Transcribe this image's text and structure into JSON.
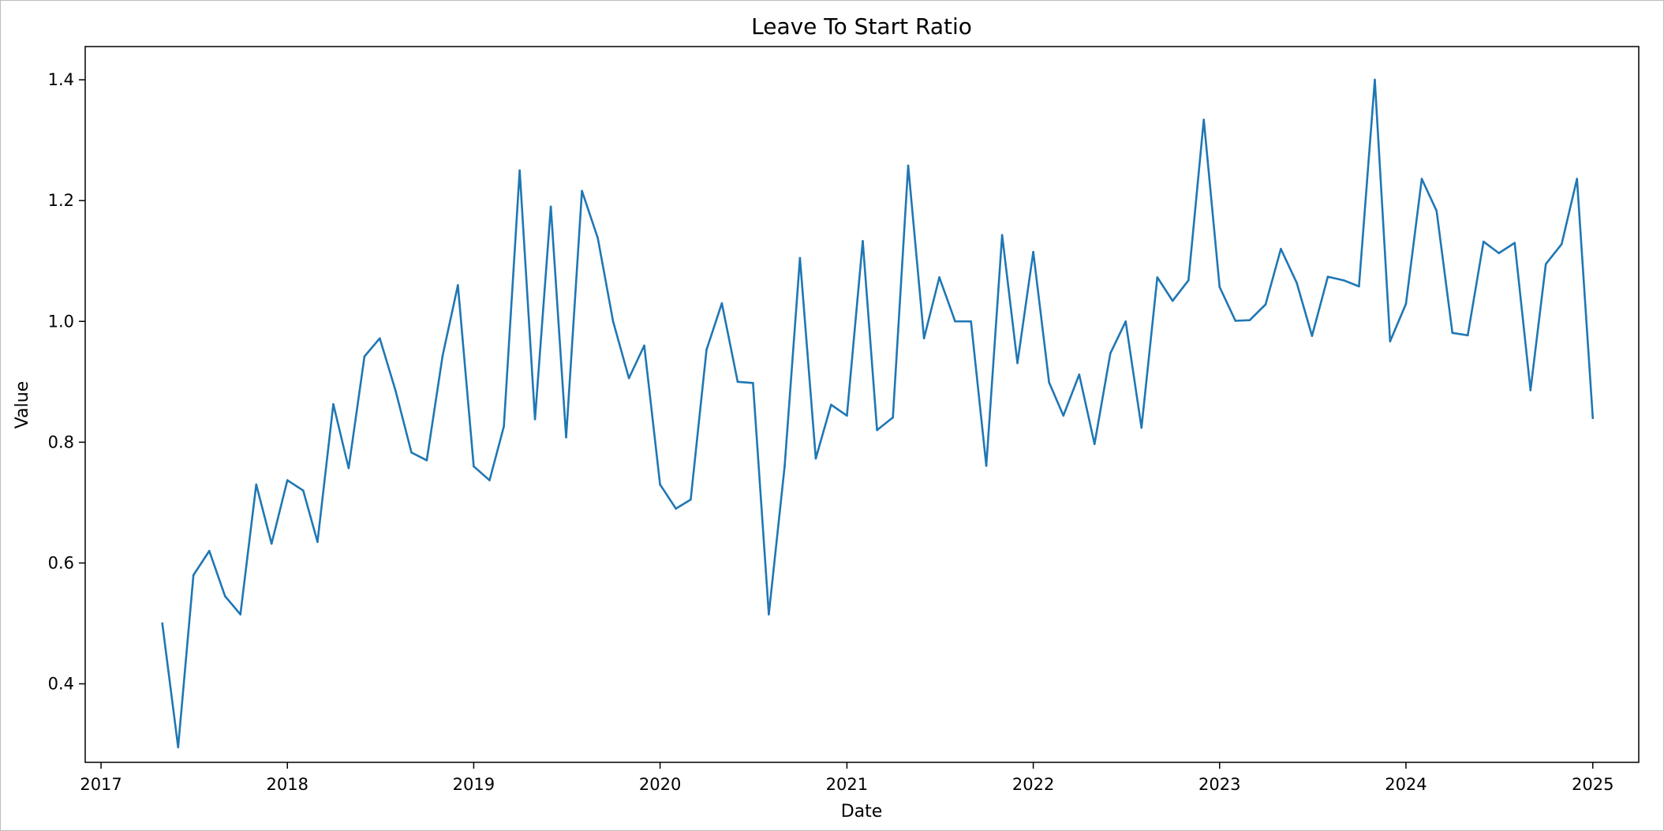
{
  "chart_data": {
    "type": "line",
    "title": "Leave To Start Ratio",
    "xlabel": "Date",
    "ylabel": "Value",
    "x_ticks": [
      "2017",
      "2018",
      "2019",
      "2020",
      "2021",
      "2022",
      "2023",
      "2024",
      "2025"
    ],
    "y_ticks": [
      "0.4",
      "0.6",
      "0.8",
      "1.0",
      "1.2",
      "1.4"
    ],
    "x_range": [
      "2016-12-01",
      "2025-04-01"
    ],
    "ylim": [
      0.27,
      1.455
    ],
    "grid": false,
    "legend": "none",
    "series": [
      {
        "color": "#1f77b4",
        "x": [
          "2017-05",
          "2017-06",
          "2017-07",
          "2017-08",
          "2017-09",
          "2017-10",
          "2017-11",
          "2017-12",
          "2018-01",
          "2018-02",
          "2018-03",
          "2018-04",
          "2018-05",
          "2018-06",
          "2018-07",
          "2018-08",
          "2018-09",
          "2018-10",
          "2018-11",
          "2018-12",
          "2019-01",
          "2019-02",
          "2019-03",
          "2019-04",
          "2019-05",
          "2019-06",
          "2019-07",
          "2019-08",
          "2019-09",
          "2019-10",
          "2019-11",
          "2019-12",
          "2020-01",
          "2020-02",
          "2020-03",
          "2020-04",
          "2020-05",
          "2020-06",
          "2020-07",
          "2020-08",
          "2020-09",
          "2020-10",
          "2020-11",
          "2020-12",
          "2021-01",
          "2021-02",
          "2021-03",
          "2021-04",
          "2021-05",
          "2021-06",
          "2021-07",
          "2021-08",
          "2021-09",
          "2021-10",
          "2021-11",
          "2021-12",
          "2022-01",
          "2022-02",
          "2022-03",
          "2022-04",
          "2022-05",
          "2022-06",
          "2022-07",
          "2022-08",
          "2022-09",
          "2022-10",
          "2022-11",
          "2022-12",
          "2023-01",
          "2023-02",
          "2023-03",
          "2023-04",
          "2023-05",
          "2023-06",
          "2023-07",
          "2023-08",
          "2023-09",
          "2023-10",
          "2023-11",
          "2023-12",
          "2024-01",
          "2024-02",
          "2024-03",
          "2024-04",
          "2024-05",
          "2024-06",
          "2024-07",
          "2024-08",
          "2024-09",
          "2024-10",
          "2024-11",
          "2024-12",
          "2025-01"
        ],
        "values": [
          0.5,
          0.295,
          0.58,
          0.62,
          0.545,
          0.515,
          0.73,
          0.632,
          0.737,
          0.72,
          0.635,
          0.863,
          0.757,
          0.942,
          0.972,
          0.885,
          0.783,
          0.77,
          0.943,
          1.06,
          0.76,
          0.737,
          0.826,
          1.25,
          0.838,
          1.19,
          0.808,
          1.216,
          1.138,
          1.0,
          0.906,
          0.96,
          0.73,
          0.69,
          0.705,
          0.953,
          1.03,
          0.9,
          0.898,
          0.515,
          0.76,
          1.105,
          0.773,
          0.862,
          0.844,
          1.133,
          0.82,
          0.841,
          1.258,
          0.972,
          1.073,
          1.0,
          1.0,
          0.761,
          1.143,
          0.931,
          1.115,
          0.899,
          0.844,
          0.912,
          0.797,
          0.947,
          1.0,
          0.824,
          1.073,
          1.034,
          1.068,
          1.334,
          1.057,
          1.001,
          1.002,
          1.028,
          1.12,
          1.064,
          0.976,
          1.074,
          1.068,
          1.058,
          1.4,
          0.967,
          1.029,
          1.236,
          1.183,
          0.981,
          0.977,
          1.132,
          1.113,
          1.13,
          0.886,
          1.095,
          1.128,
          1.236,
          0.84
        ]
      }
    ]
  }
}
